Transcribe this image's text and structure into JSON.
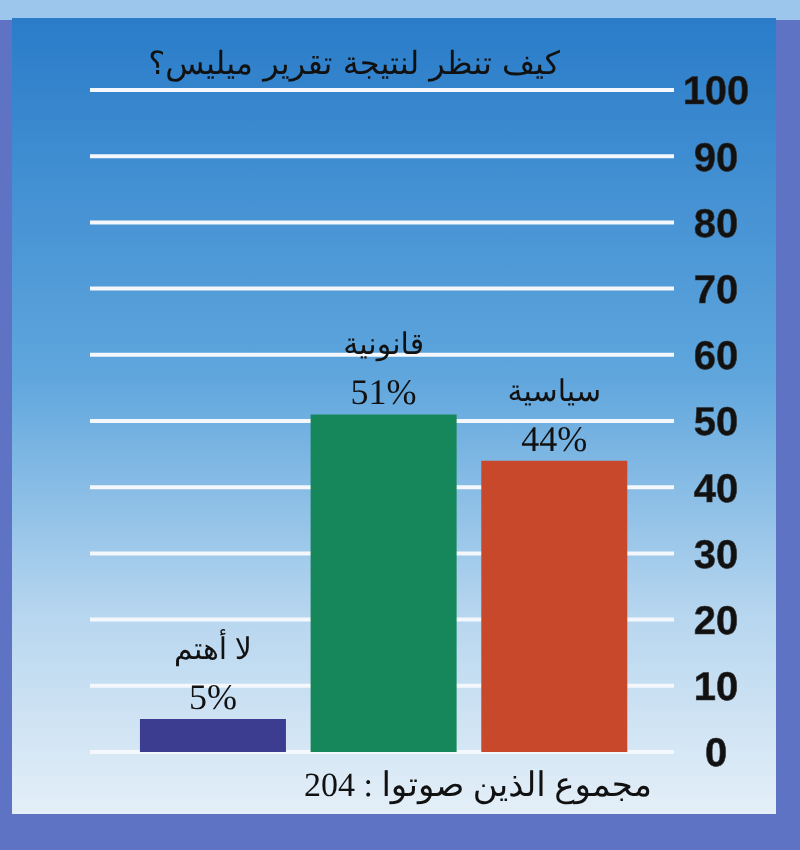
{
  "chart_data": {
    "type": "bar",
    "title": "كيف تنظر لنتيجة تقرير ميليس؟",
    "categories": [
      "لا أهتم",
      "قانونية",
      "سياسية"
    ],
    "values": [
      5,
      51,
      44
    ],
    "colors": [
      "#3c3c90",
      "#16875a",
      "#c8482c"
    ],
    "value_labels": [
      "5%",
      "51%",
      "44%"
    ],
    "ylim": [
      0,
      100
    ],
    "yticks": [
      0,
      10,
      20,
      30,
      40,
      50,
      60,
      70,
      80,
      90,
      100
    ],
    "grid": "y",
    "annotations": [
      "مجموع الذين صوتوا : 204"
    ]
  }
}
